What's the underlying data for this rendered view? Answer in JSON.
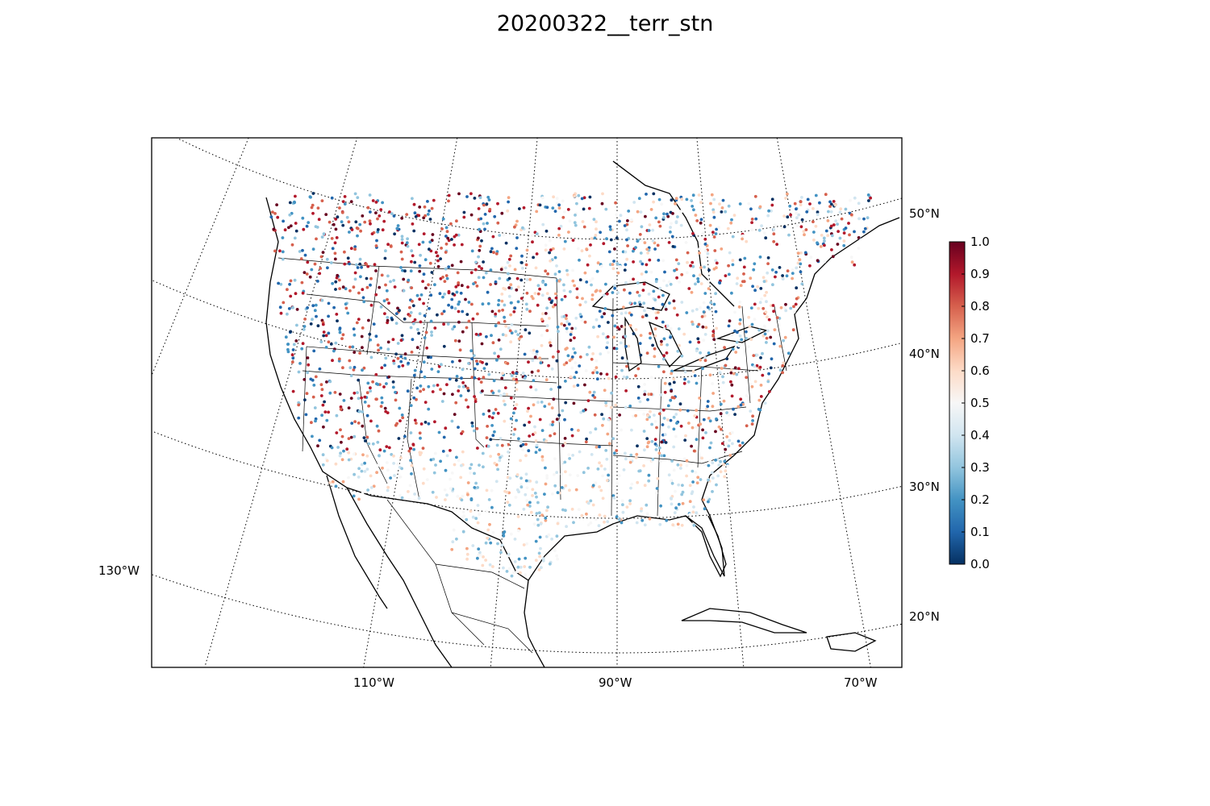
{
  "title": "20200322__terr_stn",
  "map": {
    "projection": "lambert-conformal",
    "lat_labels": [
      "50°N",
      "40°N",
      "30°N",
      "20°N"
    ],
    "lon_labels": [
      "130°W",
      "110°W",
      "90°W",
      "70°W"
    ],
    "coastline_color": "#000000",
    "grid_style": "dotted"
  },
  "colorbar": {
    "min": 0.0,
    "max": 1.0,
    "colormap": "RdBu_r",
    "tick_labels": [
      "0.0",
      "0.1",
      "0.2",
      "0.3",
      "0.4",
      "0.5",
      "0.6",
      "0.7",
      "0.8",
      "0.9",
      "1.0"
    ],
    "colors": [
      "#053061",
      "#2166ac",
      "#4393c3",
      "#92c5de",
      "#d1e5f0",
      "#f7f7f7",
      "#fddbc7",
      "#f4a582",
      "#d6604d",
      "#b2182b",
      "#67001f"
    ]
  }
}
